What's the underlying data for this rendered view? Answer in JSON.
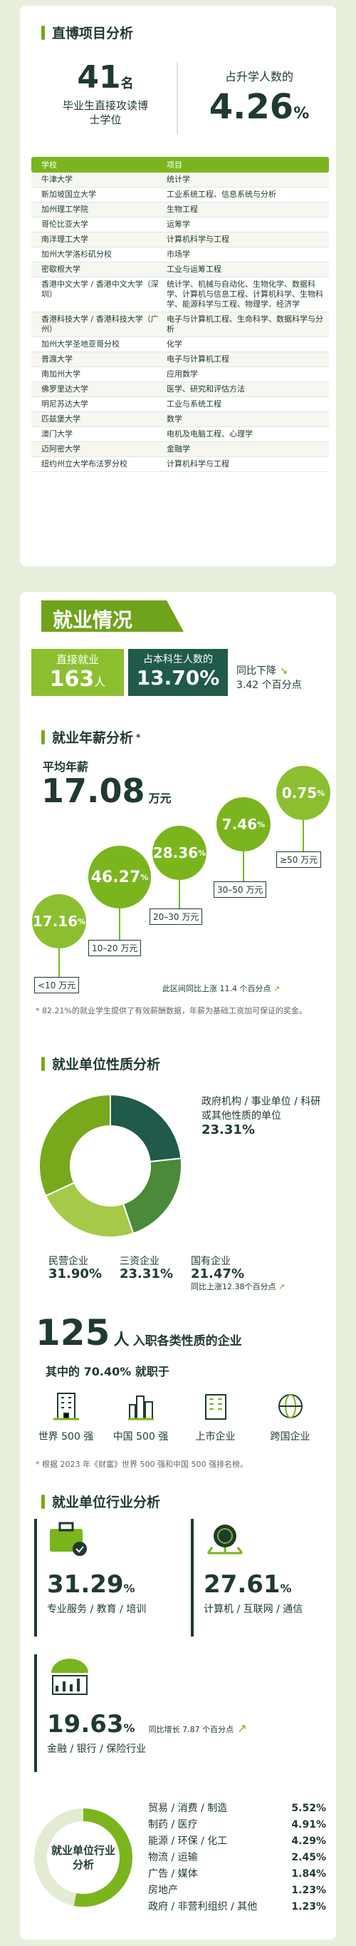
{
  "section1": {
    "title": "直博项目分析",
    "count": "41",
    "count_unit": "名",
    "count_desc": "毕业生直接攻读博士学位",
    "pct_label": "占升学人数的",
    "pct": "4.26",
    "pct_unit": "%",
    "table_headers": [
      "学校",
      "项目"
    ],
    "rows": [
      {
        "school": "牛津大学",
        "major": "统计学"
      },
      {
        "school": "新加坡国立大学",
        "major": "工业系统工程、信息系统与分析"
      },
      {
        "school": "加州理工学院",
        "major": "生物工程"
      },
      {
        "school": "哥伦比亚大学",
        "major": "运筹学"
      },
      {
        "school": "南洋理工大学",
        "major": "计算机科学与工程"
      },
      {
        "school": "加州大学洛杉矶分校",
        "major": "市场学"
      },
      {
        "school": "密歇根大学",
        "major": "工业与运筹工程"
      },
      {
        "school": "香港中文大学 / 香港中文大学（深圳）",
        "major": "统计学、机械与自动化、生物化学、数据科学、计算机与信息工程、计算机科学、生物科学、能源科学与工程、物理学、经济学"
      },
      {
        "school": "香港科技大学 / 香港科技大学（广州）",
        "major": "电子与计算机工程、生命科学、数据科学与分析"
      },
      {
        "school": "加州大学圣地亚哥分校",
        "major": "化学"
      },
      {
        "school": "普渡大学",
        "major": "电子与计算机工程"
      },
      {
        "school": "南加州大学",
        "major": "应用数学"
      },
      {
        "school": "佛罗里达大学",
        "major": "医学、研究和评估方法"
      },
      {
        "school": "明尼苏达大学",
        "major": "工业与系统工程"
      },
      {
        "school": "匹兹堡大学",
        "major": "数学"
      },
      {
        "school": "澳门大学",
        "major": "电机及电脑工程、心理学"
      },
      {
        "school": "迈阿密大学",
        "major": "金融学"
      },
      {
        "school": "纽约州立大学布法罗分校",
        "major": "计算机科学与工程"
      }
    ]
  },
  "section2": {
    "title": "就业情况",
    "direct_label": "直接就业",
    "direct_count": "163",
    "direct_unit": "人",
    "ratio_label": "占本科生人数的",
    "ratio": "13.70%",
    "yoy_label": "同比下降",
    "yoy_value": "3.42 个百分点",
    "salary_title": "就业年薪分析",
    "salary_star": "*",
    "avg_label": "平均年薪",
    "avg_value": "17.08",
    "avg_unit": "万元",
    "brackets": [
      {
        "pct": "17.16",
        "label": "<10 万元"
      },
      {
        "pct": "46.27",
        "label": "10–20 万元"
      },
      {
        "pct": "28.36",
        "label": "20–30 万元"
      },
      {
        "pct": "7.46",
        "label": "30–50 万元"
      },
      {
        "pct": "0.75",
        "label": "≥50 万元"
      }
    ],
    "bracket_note": "此区间同比上涨 11.4 个百分点",
    "salary_footnote": "* 82.21%的就业学生提供了有效薪酬数据，年薪为基础工资加可保证的奖金。",
    "nature_title": "就业单位性质分析",
    "nature": [
      {
        "label": "政府机构 / 事业单位 / 科研或其他性质的单位",
        "pct": "23.31",
        "color": "#1f5a4a"
      },
      {
        "label": "国有企业",
        "pct": "21.47",
        "color": "#4a8a3a"
      },
      {
        "label": "三资企业",
        "pct": "23.31",
        "color": "#a6c94a"
      },
      {
        "label": "民营企业",
        "pct": "31.90",
        "color": "#78a81c"
      }
    ],
    "soe_note": "同比上涨12.38个百分点",
    "entries_count": "125",
    "entries_unit": "人",
    "entries_text": "入职各类性质的企业",
    "among_text": "其中的",
    "among_pct": "70.40%",
    "among_suffix": "就职于",
    "company_types": [
      "世界 500 强",
      "中国 500 强",
      "上市企业",
      "跨国企业"
    ],
    "company_note": "* 根据 2023 年《财富》世界 500 强和中国 500 强排名榜。",
    "industry_title": "就业单位行业分析",
    "top_industries": [
      {
        "pct": "31.29",
        "label": "专业服务 / 教育 / 培训"
      },
      {
        "pct": "27.61",
        "label": "计算机 / 互联网 / 通信"
      },
      {
        "pct": "19.63",
        "label": "金融 / 银行 / 保险行业"
      }
    ],
    "finance_note": "同比增长 7.87 个百分点",
    "donut_label": "就业单位行业分析",
    "other_industries": [
      {
        "label": "贸易 / 消费 / 制造",
        "pct": "5.52%"
      },
      {
        "label": "制药 / 医疗",
        "pct": "4.91%"
      },
      {
        "label": "能源 / 环保 / 化工",
        "pct": "4.29%"
      },
      {
        "label": "物流 / 运输",
        "pct": "2.45%"
      },
      {
        "label": "广告 / 媒体",
        "pct": "1.84%"
      },
      {
        "label": "房地产",
        "pct": "1.23%"
      },
      {
        "label": "政府 / 非营利组织 / 其他",
        "pct": "1.23%"
      }
    ]
  }
}
